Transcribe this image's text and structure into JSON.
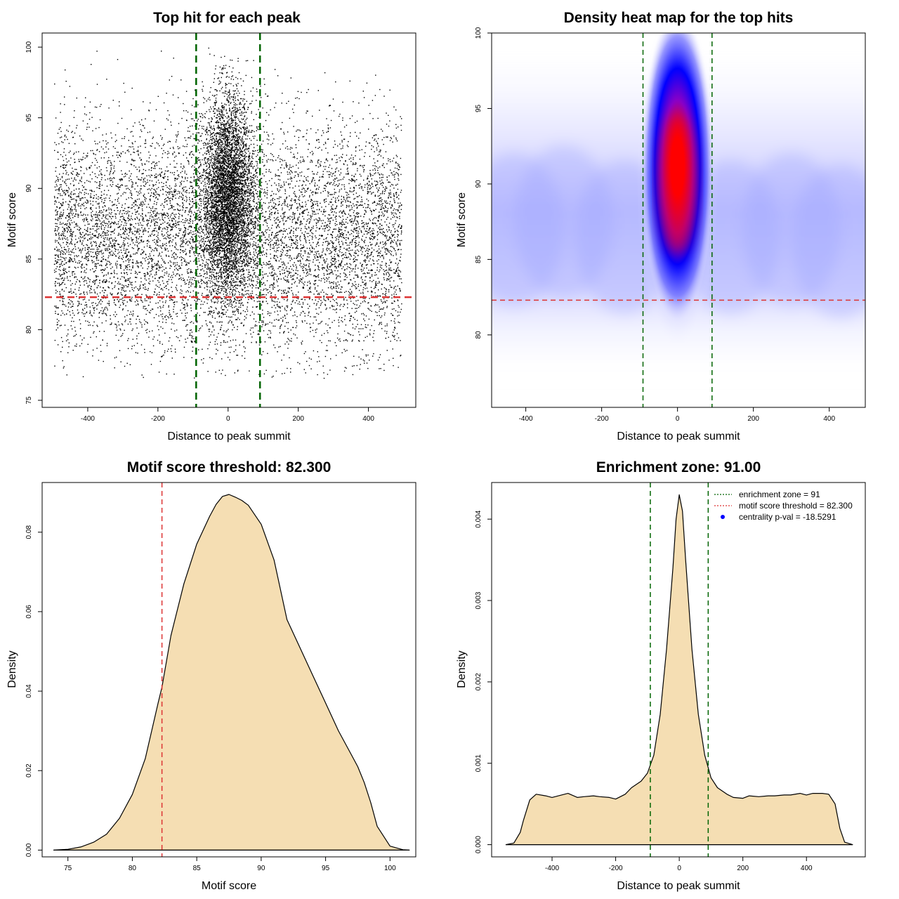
{
  "colors": {
    "enrichment_line": "#006400",
    "threshold_line": "#dd3333",
    "density_fill": "#f5deb3",
    "heat_low": "#ffffff",
    "heat_mid": "#0000ff",
    "heat_high": "#ff0000",
    "points": "#000000"
  },
  "chart_data": [
    {
      "type": "scatter",
      "title": "Top hit for each peak",
      "xlabel": "Distance to peak summit",
      "ylabel": "Motif score",
      "xlim": [
        -530,
        535
      ],
      "ylim": [
        74.5,
        101
      ],
      "xticks": [
        -400,
        -200,
        0,
        200,
        400
      ],
      "xtick_labels": [
        "-400",
        "-200",
        "0",
        "200",
        "400"
      ],
      "yticks": [
        75,
        80,
        85,
        90,
        95,
        100
      ],
      "ytick_labels": [
        "75",
        "80",
        "85",
        "90",
        "95",
        "100"
      ],
      "vlines": [
        -91,
        91
      ],
      "hline": 82.3,
      "distribution": {
        "uniform_x_range": [
          -495,
          495
        ],
        "background_score_mean": 86.5,
        "background_score_sd": 4.0,
        "central_x_sd": 35,
        "central_score_mean": 89.5,
        "central_score_sd": 3.5
      }
    },
    {
      "type": "heatmap",
      "title": "Density heat map for the top hits",
      "xlabel": "Distance to peak summit",
      "ylabel": "Motif score",
      "xlim": [
        -490,
        495
      ],
      "ylim": [
        75.2,
        100
      ],
      "xticks": [
        -400,
        -200,
        0,
        200,
        400
      ],
      "xtick_labels": [
        "-400",
        "-200",
        "0",
        "200",
        "400"
      ],
      "yticks": [
        80,
        85,
        90,
        95,
        100
      ],
      "ytick_labels": [
        "80",
        "85",
        "90",
        "95",
        "100"
      ],
      "vlines": [
        -91,
        91
      ],
      "hline": 82.3,
      "peak": {
        "x": 0,
        "y": 90
      }
    },
    {
      "type": "area",
      "title": "Motif score threshold: 82.300",
      "xlabel": "Motif score",
      "ylabel": "Density",
      "xlim": [
        73,
        102
      ],
      "ylim": [
        -0.0017,
        0.0925
      ],
      "xticks": [
        75,
        80,
        85,
        90,
        95,
        100
      ],
      "xtick_labels": [
        "75",
        "80",
        "85",
        "90",
        "95",
        "100"
      ],
      "yticks": [
        0,
        0.02,
        0.04,
        0.06,
        0.08
      ],
      "ytick_labels": [
        "0.00",
        "0.02",
        "0.04",
        "0.06",
        "0.08"
      ],
      "vline": 82.3,
      "x": [
        73.9,
        75,
        76,
        77,
        78,
        79,
        80,
        81,
        82,
        82.3,
        83,
        84,
        85,
        86,
        86.5,
        87,
        87.5,
        88,
        88.5,
        89,
        90,
        91,
        92,
        93,
        94,
        95,
        96,
        97,
        97.5,
        98,
        98.5,
        99,
        100,
        101,
        101.5
      ],
      "y": [
        0,
        0.0002,
        0.0008,
        0.002,
        0.004,
        0.008,
        0.014,
        0.023,
        0.037,
        0.041,
        0.054,
        0.067,
        0.077,
        0.084,
        0.087,
        0.089,
        0.0895,
        0.0888,
        0.088,
        0.0868,
        0.082,
        0.073,
        0.058,
        0.051,
        0.044,
        0.037,
        0.03,
        0.024,
        0.021,
        0.017,
        0.012,
        0.006,
        0.001,
        0.0001,
        0
      ]
    },
    {
      "type": "area",
      "title": "Enrichment zone: 91.00",
      "xlabel": "Distance to peak summit",
      "ylabel": "Density",
      "xlim": [
        -590,
        585
      ],
      "ylim": [
        -0.00015,
        0.00445
      ],
      "xticks": [
        -400,
        -200,
        0,
        200,
        400
      ],
      "xtick_labels": [
        "-400",
        "-200",
        "0",
        "200",
        "400"
      ],
      "yticks": [
        0,
        0.001,
        0.002,
        0.003,
        0.004
      ],
      "ytick_labels": [
        "0.000",
        "0.001",
        "0.002",
        "0.003",
        "0.004"
      ],
      "vlines": [
        -91,
        91
      ],
      "x": [
        -545,
        -520,
        -500,
        -490,
        -470,
        -450,
        -420,
        -400,
        -380,
        -350,
        -320,
        -300,
        -270,
        -250,
        -220,
        -200,
        -170,
        -150,
        -120,
        -100,
        -80,
        -60,
        -40,
        -20,
        -10,
        0,
        10,
        20,
        40,
        60,
        80,
        100,
        120,
        150,
        170,
        200,
        220,
        250,
        280,
        300,
        330,
        350,
        380,
        400,
        420,
        450,
        470,
        490,
        505,
        520,
        545
      ],
      "y": [
        0,
        2e-05,
        0.00015,
        0.0003,
        0.00055,
        0.00062,
        0.0006,
        0.00058,
        0.0006,
        0.00063,
        0.00058,
        0.00059,
        0.0006,
        0.00059,
        0.00058,
        0.00056,
        0.00062,
        0.0007,
        0.00078,
        0.00088,
        0.0011,
        0.0016,
        0.0024,
        0.0034,
        0.004,
        0.0043,
        0.0041,
        0.0035,
        0.0024,
        0.0016,
        0.0011,
        0.00082,
        0.0007,
        0.00062,
        0.00058,
        0.00057,
        0.0006,
        0.00059,
        0.0006,
        0.0006,
        0.00061,
        0.00061,
        0.00063,
        0.00061,
        0.00063,
        0.00063,
        0.00062,
        0.0005,
        0.0002,
        3e-05,
        0
      ],
      "legend": {
        "position": "top-right",
        "items": [
          {
            "label": "enrichment zone = 91",
            "marker": "dotted-line",
            "color": "#006400"
          },
          {
            "label": "motif score threshold = 82.300",
            "marker": "dotted-line",
            "color": "#dd3333"
          },
          {
            "label": "centrality p-val = -18.5291",
            "marker": "dot",
            "color": "#0000ff"
          }
        ]
      }
    }
  ]
}
